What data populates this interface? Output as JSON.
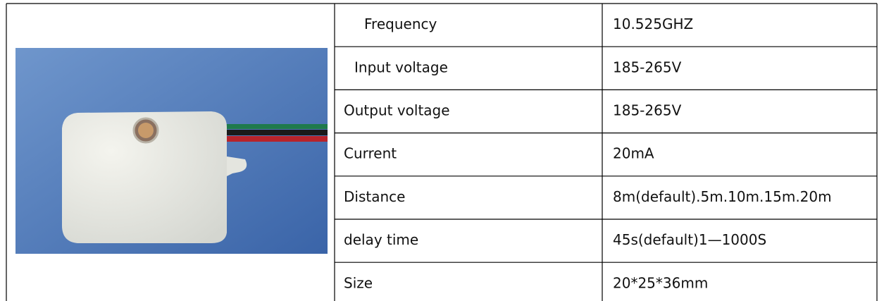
{
  "table": {
    "rows": [
      [
        "Frequency",
        "10.525GHZ"
      ],
      [
        "Input voltage",
        "185-265V"
      ],
      [
        "Output voltage",
        "185-265V"
      ],
      [
        "Current",
        "20mA"
      ],
      [
        "Distance",
        "8m(default).5m.10m.15m.20m"
      ],
      [
        "delay time",
        "45s(default)1—1000S"
      ],
      [
        "Size",
        "20*25*36mm"
      ]
    ]
  }
}
